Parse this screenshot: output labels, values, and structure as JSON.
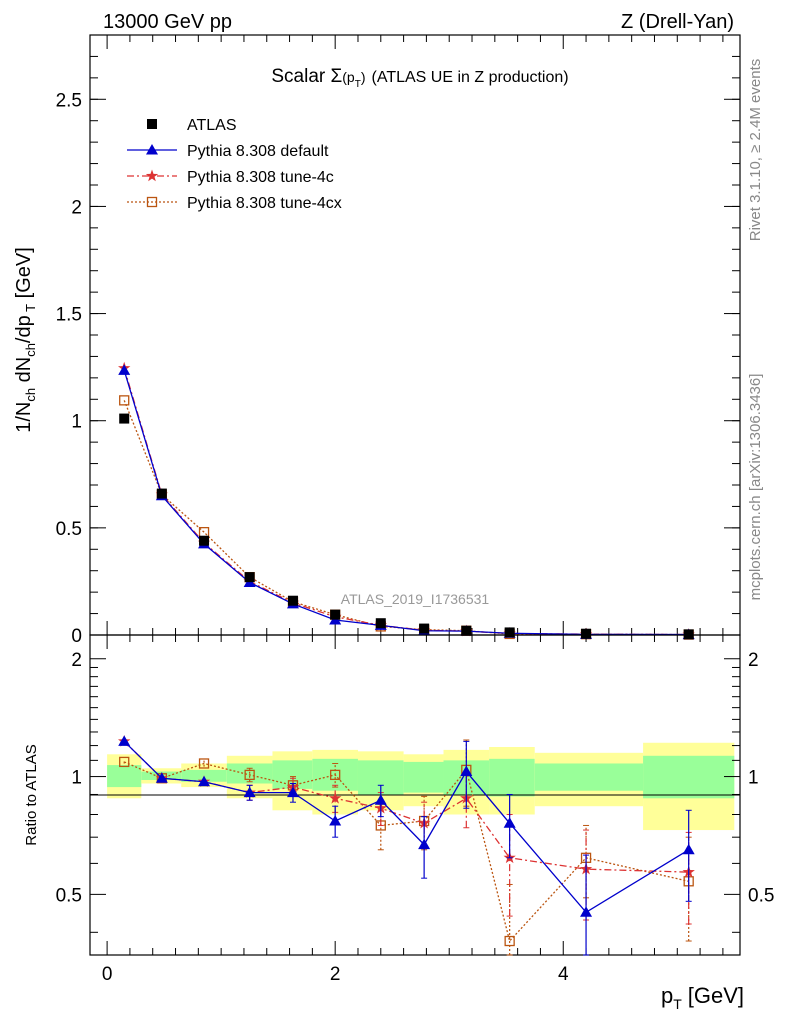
{
  "header": {
    "left": "13000 GeV pp",
    "right": "Z (Drell-Yan)"
  },
  "side_labels": {
    "rivet": "Rivet 3.1.10, ≥ 2.4M events",
    "mcplots": "mcplots.cern.ch [arXiv:1306.3436]"
  },
  "chart_data": {
    "type": "scatter",
    "title_prefix": "Scalar Σ",
    "title_arg": "(p",
    "title_arg_sub": "T",
    "title_arg_close": ")",
    "title_suffix": "(ATLAS UE in Z production)",
    "watermark": "ATLAS_2019_I1736531",
    "xlabel": "p",
    "xlabel_sub": "T",
    "xlabel_unit": "[GeV]",
    "ylabel_top": "1/N_ch dN_ch/dp_T [GeV]",
    "ylabel_bottom": "Ratio to ATLAS",
    "xlim": [
      -0.15,
      5.55
    ],
    "ylim_top": [
      0,
      2.8
    ],
    "ylim_bottom": [
      0.35,
      2.3
    ],
    "x_ticks": [
      "0",
      "2",
      "4"
    ],
    "y_ticks_top": [
      "0",
      "0.5",
      "1",
      "1.5",
      "2",
      "2.5"
    ],
    "y_ticks_bottom": [
      "0.5",
      "1",
      "2"
    ],
    "legend_position": "top-left",
    "x": [
      0.15,
      0.48,
      0.85,
      1.25,
      1.63,
      2.0,
      2.4,
      2.78,
      3.15,
      3.53,
      4.2,
      5.1
    ],
    "bins": [
      [
        0.0,
        0.3
      ],
      [
        0.3,
        0.65
      ],
      [
        0.65,
        1.05
      ],
      [
        1.05,
        1.45
      ],
      [
        1.45,
        1.8
      ],
      [
        1.8,
        2.2
      ],
      [
        2.2,
        2.6
      ],
      [
        2.6,
        2.95
      ],
      [
        2.95,
        3.35
      ],
      [
        3.35,
        3.75
      ],
      [
        3.75,
        4.7
      ],
      [
        4.7,
        5.5
      ]
    ],
    "band_green": [
      [
        0.94,
        1.07
      ],
      [
        0.98,
        1.03
      ],
      [
        0.97,
        1.04
      ],
      [
        0.96,
        1.08
      ],
      [
        0.93,
        1.1
      ],
      [
        0.92,
        1.11
      ],
      [
        0.9,
        1.1
      ],
      [
        0.91,
        1.09
      ],
      [
        0.9,
        1.1
      ],
      [
        0.89,
        1.11
      ],
      [
        0.92,
        1.08
      ],
      [
        0.88,
        1.13
      ]
    ],
    "band_yellow": [
      [
        0.88,
        1.14
      ],
      [
        0.96,
        1.05
      ],
      [
        0.94,
        1.08
      ],
      [
        0.88,
        1.13
      ],
      [
        0.82,
        1.16
      ],
      [
        0.8,
        1.17
      ],
      [
        0.82,
        1.16
      ],
      [
        0.84,
        1.14
      ],
      [
        0.8,
        1.17
      ],
      [
        0.8,
        1.19
      ],
      [
        0.84,
        1.15
      ],
      [
        0.73,
        1.22
      ]
    ],
    "series": [
      {
        "name": "ATLAS",
        "color": "#000000",
        "marker": "square-filled",
        "values": [
          1.01,
          0.66,
          0.44,
          0.27,
          0.16,
          0.095,
          0.055,
          0.03,
          0.02,
          0.012,
          0.006,
          0.003
        ]
      },
      {
        "name": "Pythia 8.308 default",
        "color": "#0000cc",
        "marker": "triangle",
        "values": [
          1.235,
          0.65,
          0.425,
          0.245,
          0.145,
          0.07,
          0.045,
          0.02,
          0.018,
          0.008,
          0.003,
          0.002
        ],
        "ratio": [
          1.23,
          0.99,
          0.97,
          0.91,
          0.91,
          0.77,
          0.87,
          0.67,
          1.03,
          0.76,
          0.45,
          0.65
        ],
        "ratio_err": [
          0.01,
          0.01,
          0.02,
          0.04,
          0.05,
          0.07,
          0.08,
          0.12,
          0.2,
          0.14,
          0.18,
          0.17
        ]
      },
      {
        "name": "Pythia 8.308 tune-4c",
        "color": "#dd3333",
        "marker": "star",
        "values": [
          1.245,
          0.655,
          0.43,
          0.25,
          0.15,
          0.085,
          0.045,
          0.022,
          0.018,
          0.007,
          0.004,
          0.002
        ],
        "ratio": [
          1.23,
          0.99,
          0.97,
          0.91,
          0.94,
          0.88,
          0.83,
          0.76,
          0.88,
          0.62,
          0.58,
          0.57
        ],
        "ratio_err": [
          0.01,
          0.01,
          0.02,
          0.04,
          0.05,
          0.07,
          0.08,
          0.1,
          0.14,
          0.18,
          0.15,
          0.15
        ]
      },
      {
        "name": "Pythia 8.308 tune-4cx",
        "color": "#bb5511",
        "marker": "square-open",
        "values": [
          1.095,
          0.655,
          0.48,
          0.27,
          0.155,
          0.095,
          0.04,
          0.025,
          0.02,
          0.005,
          0.004,
          0.002
        ],
        "ratio": [
          1.09,
          0.99,
          1.08,
          1.01,
          0.95,
          1.01,
          0.75,
          0.77,
          1.04,
          0.38,
          0.62,
          0.54
        ],
        "ratio_err": [
          0.01,
          0.01,
          0.02,
          0.04,
          0.05,
          0.07,
          0.1,
          0.12,
          0.2,
          0.15,
          0.13,
          0.16
        ]
      }
    ]
  }
}
